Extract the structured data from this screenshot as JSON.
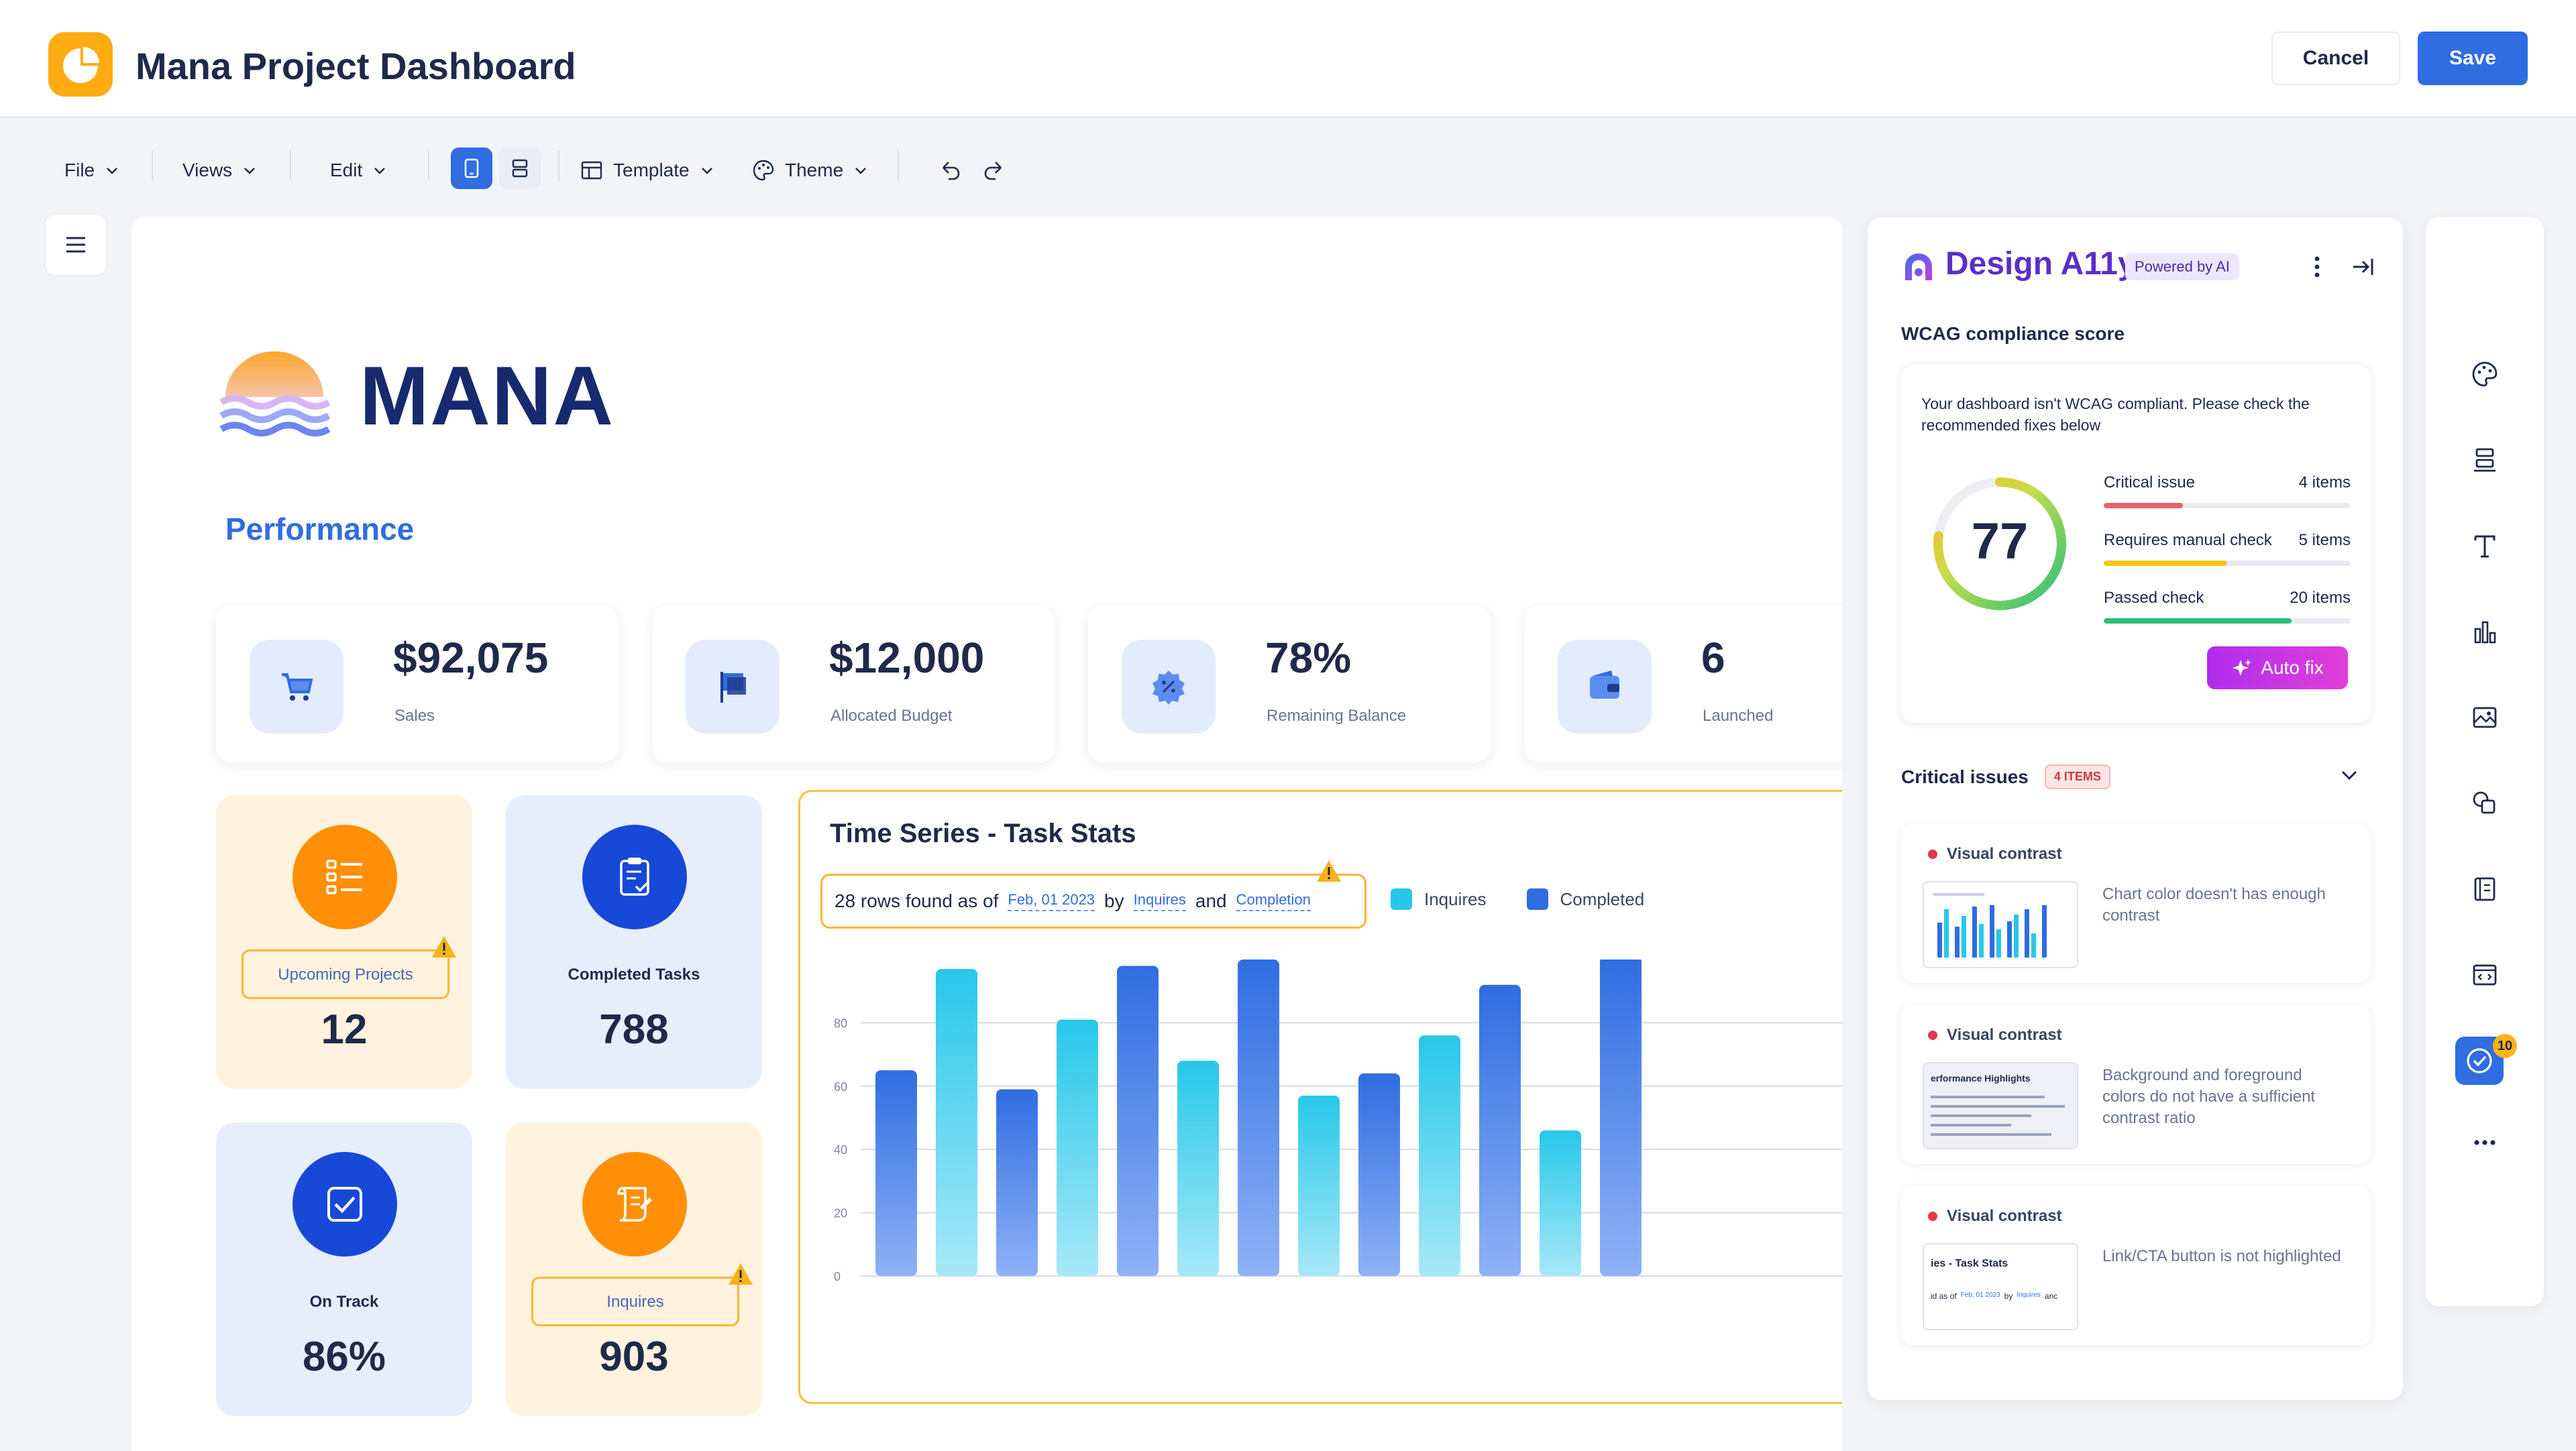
{
  "header": {
    "title": "Mana Project Dashboard",
    "cancel_label": "Cancel",
    "save_label": "Save"
  },
  "toolbar": {
    "file": "File",
    "views": "Views",
    "edit": "Edit",
    "template": "Template",
    "theme": "Theme"
  },
  "canvas": {
    "brand": "MANA",
    "section_title": "Performance",
    "stats": [
      {
        "value": "$92,075",
        "label": "Sales",
        "icon": "cart-icon"
      },
      {
        "value": "$12,000",
        "label": "Allocated Budget",
        "icon": "flag-icon"
      },
      {
        "value": "78%",
        "label": "Remaining Balance",
        "icon": "discount-badge-icon"
      },
      {
        "value": "6",
        "label": "Launched",
        "icon": "wallet-icon"
      }
    ],
    "kpis": [
      {
        "label": "Upcoming Projects",
        "value": "12",
        "icon": "list-icon",
        "theme": "orange"
      },
      {
        "label": "Completed Tasks",
        "value": "788",
        "icon": "clipboard-check-icon",
        "theme": "blue"
      },
      {
        "label": "On Track",
        "value": "86%",
        "icon": "checkbox-icon",
        "theme": "blue"
      },
      {
        "label": "Inquires",
        "value": "903",
        "icon": "scroll-icon",
        "theme": "orange"
      }
    ],
    "chart": {
      "title": "Time Series - Task Stats",
      "rows_text": "28 rows found as of",
      "date": "Feb, 01 2023",
      "by": "by",
      "link1": "Inquires",
      "and": "and",
      "link2": "Completion"
    }
  },
  "chart_data": {
    "type": "bar",
    "title": "Time Series - Task Stats",
    "xlabel": "",
    "ylabel": "",
    "categories": [
      "",
      "",
      "",
      "",
      "",
      "",
      "",
      "",
      "",
      "",
      "",
      "",
      "",
      "",
      ""
    ],
    "series": [
      {
        "name": "Completed",
        "color": "#2f6de1"
      },
      {
        "name": "Inquires",
        "color": "#27c7ea"
      }
    ],
    "bars": [
      {
        "series": "Completed",
        "value": 65
      },
      {
        "series": "Inquires",
        "value": 97
      },
      {
        "series": "Completed",
        "value": 59
      },
      {
        "series": "Inquires",
        "value": 81
      },
      {
        "series": "Completed",
        "value": 98
      },
      {
        "series": "Inquires",
        "value": 68
      },
      {
        "series": "Completed",
        "value": 100
      },
      {
        "series": "Inquires",
        "value": 57
      },
      {
        "series": "Completed",
        "value": 64
      },
      {
        "series": "Inquires",
        "value": 76
      },
      {
        "series": "Completed",
        "value": 92
      },
      {
        "series": "Inquires",
        "value": 46
      },
      {
        "series": "Completed",
        "value": 101
      }
    ],
    "yticks": [
      0,
      20,
      40,
      60,
      80
    ],
    "ylim": [
      0,
      100
    ],
    "grid": true,
    "legend": "top"
  },
  "panel": {
    "title": "Design A11y",
    "powered": "Powered by AI",
    "score_title": "WCAG compliance score",
    "score_message": "Your dashboard isn't WCAG compliant. Please check the recommended fixes below",
    "score": "77",
    "score_value": 77,
    "metrics": [
      {
        "label": "Critical issue",
        "count": "4 items",
        "fraction": 0.32,
        "color": "#e8626c"
      },
      {
        "label": "Requires manual check",
        "count": "5 items",
        "fraction": 0.5,
        "color": "#ffc414"
      },
      {
        "label": "Passed check",
        "count": "20 items",
        "fraction": 0.76,
        "color": "#26c07a"
      }
    ],
    "autofix": "Auto fix",
    "issues_title": "Critical issues",
    "issues_count": "4 ITEMS",
    "issues": [
      {
        "type": "Visual contrast",
        "desc": "Chart color doesn't has enough contrast",
        "thumb": "chart"
      },
      {
        "type": "Visual contrast",
        "desc": "Background and foreground colors do not have a sufficient contrast ratio",
        "thumb": "highlights",
        "thumb_title": "erformance Highlights"
      },
      {
        "type": "Visual contrast",
        "desc": "Link/CTA button is not highlighted",
        "thumb": "stats",
        "thumb_title": "ies - Task Stats",
        "thumb_line": "id as of",
        "thumb_date": "Feb, 01 2023",
        "thumb_by": "by",
        "thumb_link": "Inquires",
        "thumb_and": "anc"
      }
    ]
  },
  "rail": {
    "badge_count": "10"
  }
}
